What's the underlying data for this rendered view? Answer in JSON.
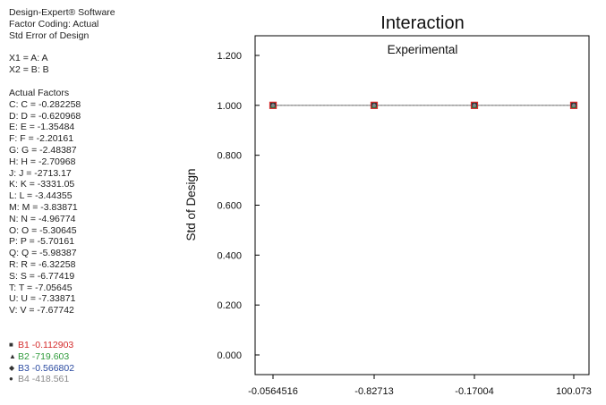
{
  "sidebar": {
    "software": "Design-Expert® Software",
    "factor_coding": "Factor Coding: Actual",
    "response": "Std Error of Design",
    "x1": "X1 = A: A",
    "x2": "X2 = B: B",
    "actual_factors_heading": "Actual Factors",
    "actual_factors": [
      "C: C = -0.282258",
      "D: D = -0.620968",
      "E: E = -1.35484",
      "F: F = -2.20161",
      "G: G = -2.48387",
      "H: H = -2.70968",
      "J: J = -2713.17",
      "K: K = -3331.05",
      "L: L = -3.44355",
      "M: M = -3.83871",
      "N: N = -4.96774",
      "O: O = -5.30645",
      "P: P = -5.70161",
      "Q: Q = -5.98387",
      "R: R = -6.32258",
      "S: S = -6.77419",
      "T: T = -7.05645",
      "U: U = -7.33871",
      "V: V = -7.67742"
    ]
  },
  "colors": {
    "b1": "#d42a2a",
    "b2": "#2e9a3a",
    "b3": "#2a4aa0",
    "b4": "#8a8a8a",
    "line": "#888888",
    "frame": "#000000"
  },
  "chart_data": {
    "type": "line",
    "title": "Interaction",
    "subtitle": "Experimental",
    "xlabel": "",
    "ylabel": "Std of Design",
    "categories": [
      "-0.0564516",
      "-0.82713",
      "-0.17004",
      "100.073"
    ],
    "y_ticks": [
      "0.000",
      "0.200",
      "0.400",
      "0.600",
      "0.800",
      "1.000",
      "1.200"
    ],
    "ylim": [
      0,
      1.26
    ],
    "grid": false,
    "series": [
      {
        "name": "B1 -0.112903",
        "marker": "square",
        "color_key": "b1",
        "values": [
          1.0,
          1.0,
          1.0,
          1.0
        ]
      },
      {
        "name": "B2 -719.603",
        "marker": "triangle",
        "color_key": "b2",
        "values": [
          1.0,
          1.0,
          1.0,
          1.0
        ]
      },
      {
        "name": "B3 -0.566802",
        "marker": "diamond",
        "color_key": "b3",
        "values": [
          1.0,
          1.0,
          1.0,
          1.0
        ]
      },
      {
        "name": "B4 -418.561",
        "marker": "circle",
        "color_key": "b4",
        "values": [
          1.0,
          1.0,
          1.0,
          1.0
        ]
      }
    ]
  }
}
